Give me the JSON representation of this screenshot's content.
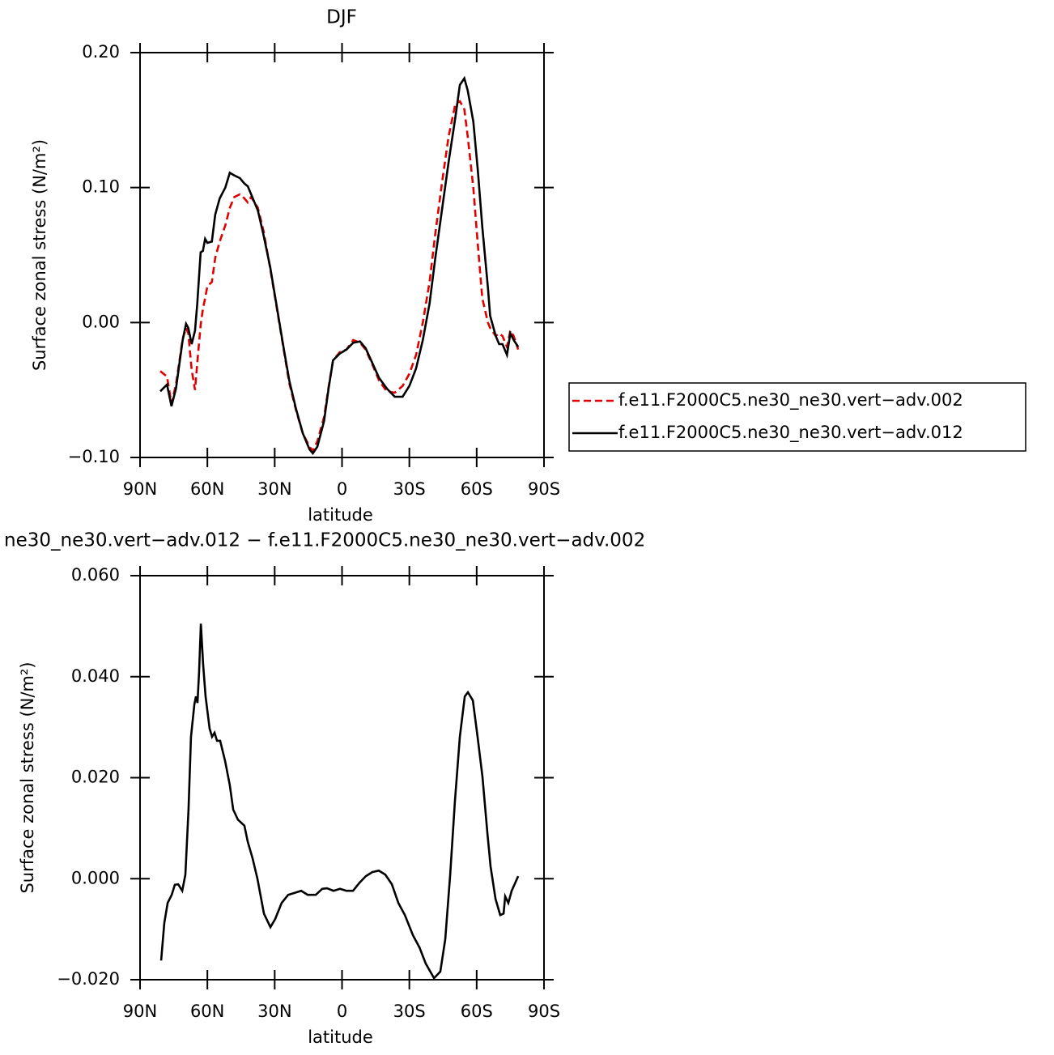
{
  "chart_data": [
    {
      "type": "line",
      "title": "DJF",
      "xlabel": "latitude",
      "ylabel": "Surface zonal stress (N/m²)",
      "xlim": [
        90,
        -90
      ],
      "xticks": [
        {
          "value": 90,
          "label": "90N"
        },
        {
          "value": 60,
          "label": "60N"
        },
        {
          "value": 30,
          "label": "30N"
        },
        0,
        {
          "value": -30,
          "label": "30S"
        },
        {
          "value": -60,
          "label": "60S"
        },
        {
          "value": -90,
          "label": "90S"
        }
      ],
      "ylim": [
        -0.1,
        0.2
      ],
      "yticks": [
        {
          "value": -0.1,
          "label": "−0.10"
        },
        {
          "value": 0,
          "label": "0.00"
        },
        {
          "value": 0.1,
          "label": "0.10"
        },
        {
          "value": 0.2,
          "label": "0.20"
        }
      ],
      "legend": "right",
      "x": [
        81,
        78,
        76,
        74,
        71,
        69.5,
        68.5,
        67,
        65.5,
        64.5,
        63,
        62,
        61,
        60,
        58,
        56.5,
        54.5,
        52,
        50,
        48,
        45.5,
        43.5,
        42,
        40.5,
        37.5,
        35,
        32,
        29,
        26,
        23.5,
        20.5,
        17.5,
        14.5,
        13,
        11,
        8,
        6,
        4,
        1,
        -2,
        -5,
        -8,
        -10.5,
        -13.5,
        -16.5,
        -20,
        -23.5,
        -27,
        -30,
        -33,
        -36,
        -39,
        -41.5,
        -44.5,
        -47.5,
        -50.5,
        -52.5,
        -54.5,
        -56,
        -58.5,
        -60.5,
        -62.5,
        -65,
        -66,
        -68.5,
        -70,
        -71.5,
        -73.5,
        -75,
        -76.5,
        -78.5
      ],
      "series": [
        {
          "name": "f.e11.F2000C5.ne30_ne30.vert−adv.002",
          "color": "#e00000",
          "line_style": "dashed",
          "values": [
            -0.036,
            -0.04,
            -0.06,
            -0.046,
            -0.012,
            -0.004,
            -0.008,
            -0.035,
            -0.05,
            -0.03,
            -0.002,
            0.01,
            0.018,
            0.027,
            0.03,
            0.048,
            0.06,
            0.072,
            0.085,
            0.093,
            0.095,
            0.092,
            0.089,
            0.093,
            0.085,
            0.068,
            0.04,
            0.01,
            -0.02,
            -0.045,
            -0.065,
            -0.082,
            -0.092,
            -0.095,
            -0.088,
            -0.07,
            -0.048,
            -0.028,
            -0.022,
            -0.02,
            -0.013,
            -0.015,
            -0.02,
            -0.031,
            -0.043,
            -0.051,
            -0.052,
            -0.047,
            -0.038,
            -0.024,
            0.0,
            0.03,
            0.065,
            0.103,
            0.138,
            0.162,
            0.164,
            0.158,
            0.138,
            0.1,
            0.058,
            0.018,
            0.0,
            -0.004,
            -0.01,
            -0.008,
            -0.01,
            -0.018,
            -0.006,
            -0.01,
            -0.02
          ]
        },
        {
          "name": "f.e11.F2000C5.ne30_ne30.vert−adv.012",
          "color": "#000000",
          "line_style": "solid",
          "values": [
            -0.051,
            -0.046,
            -0.062,
            -0.049,
            -0.013,
            -0.001,
            -0.004,
            -0.016,
            -0.006,
            0.014,
            0.052,
            0.053,
            0.062,
            0.059,
            0.06,
            0.08,
            0.092,
            0.1,
            0.111,
            0.109,
            0.107,
            0.103,
            0.101,
            0.095,
            0.083,
            0.065,
            0.041,
            0.011,
            -0.019,
            -0.043,
            -0.064,
            -0.082,
            -0.094,
            -0.097,
            -0.092,
            -0.073,
            -0.049,
            -0.028,
            -0.023,
            -0.02,
            -0.015,
            -0.014,
            -0.019,
            -0.03,
            -0.041,
            -0.049,
            -0.055,
            -0.055,
            -0.047,
            -0.034,
            -0.013,
            0.014,
            0.047,
            0.083,
            0.119,
            0.152,
            0.176,
            0.181,
            0.172,
            0.149,
            0.113,
            0.071,
            0.026,
            0.005,
            -0.01,
            -0.016,
            -0.016,
            -0.024,
            -0.008,
            -0.013,
            -0.018
          ]
        }
      ]
    },
    {
      "type": "line",
      "title": "ne30_ne30.vert−adv.012 − f.e11.F2000C5.ne30_ne30.vert−adv.002",
      "xlabel": "latitude",
      "ylabel": "Surface zonal stress (N/m²)",
      "xlim": [
        90,
        -90
      ],
      "xticks": [
        {
          "value": 90,
          "label": "90N"
        },
        {
          "value": 60,
          "label": "60N"
        },
        {
          "value": 30,
          "label": "30N"
        },
        0,
        {
          "value": -30,
          "label": "30S"
        },
        {
          "value": -60,
          "label": "60S"
        },
        {
          "value": -90,
          "label": "90S"
        }
      ],
      "ylim": [
        -0.02,
        0.06
      ],
      "yticks": [
        {
          "value": -0.02,
          "label": "−0.020"
        },
        {
          "value": 0,
          "label": "0.000"
        },
        {
          "value": 0.02,
          "label": "0.020"
        },
        {
          "value": 0.04,
          "label": "0.040"
        },
        {
          "value": 0.06,
          "label": "0.060"
        }
      ],
      "color": "#000000",
      "x": [
        80.6,
        79.2,
        77.7,
        75.9,
        74.5,
        73.0,
        71.2,
        69.8,
        68.4,
        67.3,
        65.8,
        65.1,
        64.4,
        63.7,
        62.9,
        61.9,
        60.8,
        59.0,
        57.9,
        56.8,
        55.7,
        54.3,
        52.1,
        50.0,
        48.5,
        46.4,
        43.5,
        42.0,
        39.9,
        37.7,
        34.8,
        31.9,
        29.8,
        26.9,
        24.0,
        20.4,
        18.2,
        15.3,
        11.7,
        8.8,
        6.7,
        3.8,
        0.9,
        -2.0,
        -4.9,
        -7.8,
        -10.6,
        -13.5,
        -16.4,
        -19.3,
        -22.2,
        -25.1,
        -28.0,
        -31.6,
        -34.5,
        -37.3,
        -41.0,
        -43.8,
        -46.0,
        -48.2,
        -50.3,
        -52.5,
        -54.7,
        -56.1,
        -58.3,
        -60.4,
        -62.6,
        -64.8,
        -66.2,
        -68.4,
        -70.5,
        -72.0,
        -72.7,
        -74.1,
        -75.6,
        -78.5
      ],
      "values": [
        -0.0162,
        -0.0088,
        -0.0048,
        -0.0032,
        -0.0012,
        -0.0011,
        -0.0024,
        0.0008,
        0.0137,
        0.0281,
        0.0345,
        0.0361,
        0.0348,
        0.0409,
        0.0505,
        0.0425,
        0.0361,
        0.0297,
        0.0281,
        0.0289,
        0.0273,
        0.0273,
        0.0233,
        0.0185,
        0.0137,
        0.0117,
        0.0105,
        0.0073,
        0.0041,
        0.0,
        -0.0069,
        -0.0096,
        -0.008,
        -0.0048,
        -0.0032,
        -0.0027,
        -0.0024,
        -0.0032,
        -0.0032,
        -0.002,
        -0.0019,
        -0.0024,
        -0.002,
        -0.0024,
        -0.0024,
        -0.0008,
        0.0005,
        0.0013,
        0.0016,
        0.0008,
        -0.0011,
        -0.0048,
        -0.0072,
        -0.0112,
        -0.0136,
        -0.0168,
        -0.0197,
        -0.0184,
        -0.012,
        0.0008,
        0.0153,
        0.0281,
        0.0361,
        0.0369,
        0.0353,
        0.0281,
        0.0201,
        0.0089,
        0.0024,
        -0.004,
        -0.0072,
        -0.0069,
        -0.0035,
        -0.0048,
        -0.0024,
        0.0005
      ]
    }
  ]
}
